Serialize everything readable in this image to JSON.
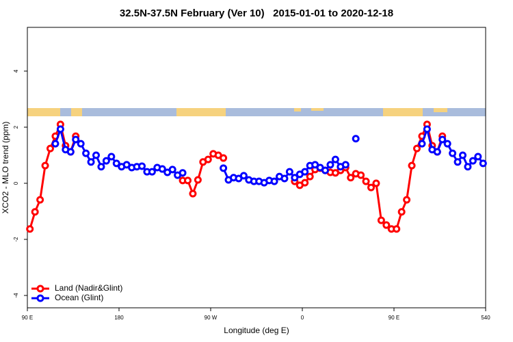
{
  "chart_data": {
    "type": "line",
    "title": "32.5N-37.5N February (Ver 10)   2015-01-01 to 2020-12-18",
    "x_label": "Longitude (deg E)",
    "y_label": "XCO2 - MLO trend (ppm)",
    "x": [
      92.5,
      97.5,
      102.5,
      107.5,
      112.5,
      117.5,
      122.5,
      127.5,
      132.5,
      137.5,
      142.5,
      147.5,
      152.5,
      157.5,
      162.5,
      167.5,
      172.5,
      177.5,
      182.5,
      187.5,
      192.5,
      197.5,
      202.5,
      207.5,
      212.5,
      217.5,
      222.5,
      227.5,
      232.5,
      237.5,
      242.5,
      247.5,
      252.5,
      257.5,
      262.5,
      267.5,
      272.5,
      277.5,
      282.5,
      287.5,
      292.5,
      297.5,
      302.5,
      307.5,
      312.5,
      317.5,
      322.5,
      327.5,
      332.5,
      337.5,
      342.5,
      347.5,
      352.5,
      357.5,
      362.5,
      367.5,
      372.5,
      377.5,
      382.5,
      387.5,
      392.5,
      397.5,
      402.5,
      407.5,
      412.5,
      417.5,
      422.5,
      427.5,
      432.5,
      437.5,
      442.5,
      447.5,
      452.5,
      457.5,
      462.5,
      467.5,
      472.5,
      477.5,
      482.5,
      487.5,
      492.5,
      497.5,
      502.5,
      507.5,
      512.5,
      517.5,
      522.5,
      527.5,
      532.5,
      537.5
    ],
    "series": [
      {
        "name": "Land (Nadir&Glint)",
        "color": "#ff0000",
        "values": [
          -1.63,
          -1.02,
          -0.59,
          0.63,
          1.24,
          1.68,
          2.1,
          1.34,
          1.12,
          1.68,
          null,
          null,
          null,
          null,
          null,
          null,
          null,
          null,
          null,
          null,
          null,
          null,
          null,
          null,
          null,
          null,
          null,
          null,
          null,
          null,
          0.1,
          0.1,
          -0.37,
          0.12,
          0.76,
          0.85,
          1.05,
          1.0,
          0.9,
          null,
          null,
          null,
          null,
          null,
          null,
          null,
          null,
          null,
          null,
          null,
          null,
          null,
          0.07,
          -0.07,
          0.02,
          0.24,
          0.49,
          0.54,
          0.46,
          0.39,
          0.37,
          0.46,
          0.56,
          0.2,
          0.34,
          0.29,
          0.07,
          -0.15,
          0.0,
          -1.32,
          -1.49,
          -1.63,
          -1.63,
          -1.02,
          -0.59,
          0.63,
          1.24,
          1.68,
          2.1,
          1.34,
          1.12,
          1.68,
          null,
          null,
          null,
          null,
          null,
          null,
          null,
          null
        ]
      },
      {
        "name": "Ocean (Glint)",
        "color": "#0000ff",
        "values": [
          null,
          null,
          null,
          null,
          null,
          1.41,
          1.93,
          1.2,
          1.12,
          1.56,
          1.41,
          1.07,
          0.76,
          1.0,
          0.59,
          0.8,
          0.95,
          0.71,
          0.59,
          0.66,
          0.56,
          0.59,
          0.61,
          0.41,
          0.41,
          0.56,
          0.51,
          0.39,
          0.49,
          0.29,
          0.37,
          null,
          null,
          null,
          null,
          null,
          null,
          null,
          0.54,
          0.12,
          0.2,
          0.17,
          0.27,
          0.12,
          0.07,
          0.07,
          0.02,
          0.1,
          0.07,
          0.24,
          0.17,
          0.41,
          0.2,
          0.32,
          0.41,
          0.63,
          0.66,
          0.56,
          0.46,
          0.66,
          0.85,
          0.59,
          0.66,
          null,
          1.59,
          null,
          null,
          null,
          null,
          null,
          null,
          null,
          null,
          null,
          null,
          null,
          null,
          1.41,
          1.93,
          1.2,
          1.12,
          1.56,
          1.41,
          1.07,
          0.76,
          1.0,
          0.59,
          0.8,
          0.95,
          0.71
        ]
      }
    ],
    "xlim": [
      90,
      540
    ],
    "xticks": [
      {
        "value": 90,
        "label": "90 E"
      },
      180,
      {
        "value": 270,
        "label": "90 W"
      },
      {
        "value": 360,
        "label": "0"
      },
      {
        "value": 450,
        "label": "90 E"
      },
      540
    ],
    "ylim": [
      -4.44,
      5.56
    ],
    "yticks": [
      -4,
      -2,
      0,
      2,
      4
    ],
    "legend": "bottomleft"
  }
}
